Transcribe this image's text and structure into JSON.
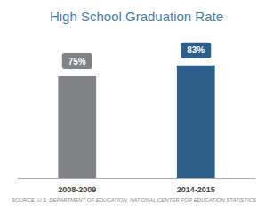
{
  "chart_data": {
    "type": "bar",
    "title": "High School Graduation Rate",
    "categories": [
      "2008-2009",
      "2014-2015"
    ],
    "values": [
      75,
      83
    ],
    "colors": [
      "#808285",
      "#2e5f8a"
    ],
    "value_labels": [
      "75%",
      "83%"
    ],
    "data_labels": true,
    "ylim": [
      0,
      105
    ],
    "tick_labels": "x",
    "grid": false,
    "annotations": [
      "SOURCE: U.S. DEPARTMENT OF EDUCATION; NATIONAL CENTER FOR EDUCATION STATISTICS"
    ]
  }
}
